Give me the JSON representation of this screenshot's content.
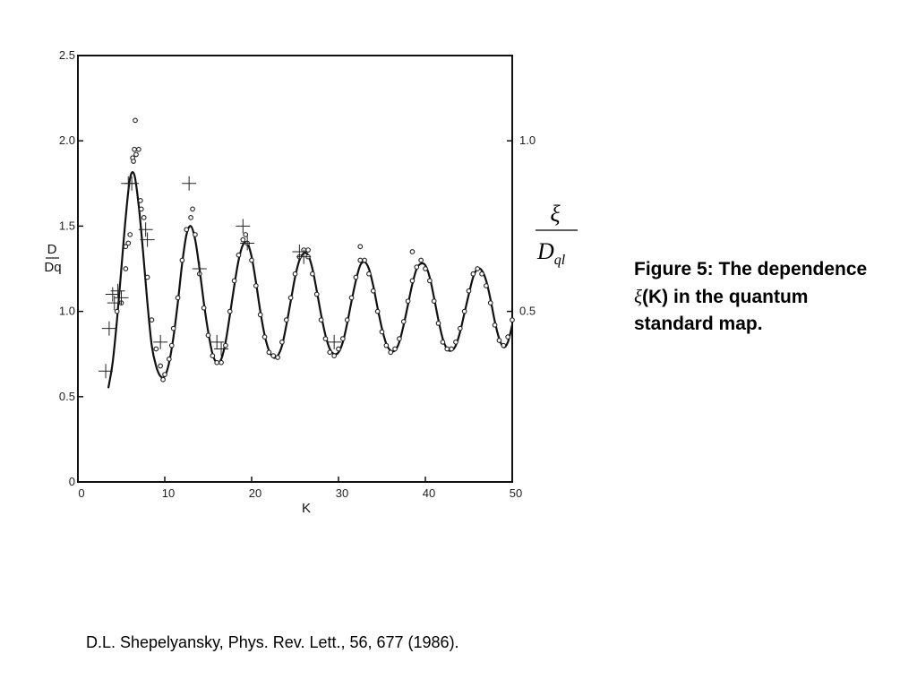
{
  "chart_data": {
    "type": "scatter",
    "xlabel": "K",
    "ylabel_left": {
      "num": "D",
      "den": "Dq"
    },
    "ylabel_right": {
      "num": "ξ",
      "den": "D",
      "den_sub": "ql"
    },
    "xlim": [
      0,
      50
    ],
    "ylim": [
      0,
      2.5
    ],
    "x_ticks": [
      "0",
      "10",
      "20",
      "30",
      "40",
      "50"
    ],
    "y_ticks": [
      "0",
      "0.5",
      "1.0",
      "1.5",
      "2.0",
      "2.5"
    ],
    "y_ticks_right": [
      "0.5",
      "1.0"
    ],
    "right_axis_values": [
      0.5,
      1.0
    ],
    "grid": false,
    "series": [
      {
        "kind": "line",
        "x": [
          3.5,
          4,
          4.5,
          5,
          5.5,
          6,
          6.5,
          7,
          7.5,
          8,
          8.5,
          9,
          9.5,
          10,
          10.5,
          11,
          11.5,
          12,
          12.5,
          13,
          13.5,
          14,
          14.5,
          15,
          15.5,
          16,
          16.5,
          17,
          17.5,
          18,
          18.5,
          19,
          19.5,
          20,
          20.5,
          21,
          21.5,
          22,
          22.5,
          23,
          23.5,
          24,
          24.5,
          25,
          25.5,
          26,
          26.5,
          27,
          27.5,
          28,
          28.5,
          29,
          29.5,
          30,
          30.5,
          31,
          31.5,
          32,
          32.5,
          33,
          33.5,
          34,
          34.5,
          35,
          35.5,
          36,
          36.5,
          37,
          37.5,
          38,
          38.5,
          39,
          39.5,
          40,
          40.5,
          41,
          41.5,
          42,
          42.5,
          43,
          43.5,
          44,
          44.5,
          45,
          45.5,
          46,
          46.5,
          47,
          47.5,
          48,
          48.5,
          49,
          49.5,
          50
        ],
        "y": [
          0.55,
          0.7,
          0.95,
          1.25,
          1.55,
          1.78,
          1.8,
          1.62,
          1.35,
          1.05,
          0.8,
          0.68,
          0.62,
          0.62,
          0.7,
          0.85,
          1.05,
          1.28,
          1.45,
          1.5,
          1.42,
          1.25,
          1.05,
          0.88,
          0.75,
          0.7,
          0.72,
          0.82,
          0.98,
          1.15,
          1.3,
          1.39,
          1.4,
          1.32,
          1.17,
          1.0,
          0.86,
          0.77,
          0.73,
          0.74,
          0.8,
          0.92,
          1.06,
          1.2,
          1.3,
          1.34,
          1.33,
          1.25,
          1.12,
          0.98,
          0.86,
          0.78,
          0.75,
          0.76,
          0.82,
          0.93,
          1.06,
          1.18,
          1.27,
          1.29,
          1.25,
          1.15,
          1.02,
          0.9,
          0.81,
          0.77,
          0.77,
          0.82,
          0.92,
          1.04,
          1.16,
          1.25,
          1.28,
          1.27,
          1.2,
          1.08,
          0.95,
          0.84,
          0.78,
          0.77,
          0.8,
          0.88,
          0.99,
          1.1,
          1.2,
          1.25,
          1.24,
          1.18,
          1.07,
          0.94,
          0.84,
          0.79,
          0.82,
          0.92
        ]
      },
      {
        "kind": "points",
        "x": [
          4.5,
          5,
          5.5,
          6,
          6.3,
          6.6,
          7,
          7.3,
          7.6,
          8,
          8.5,
          9,
          9.5,
          10,
          10.5,
          11,
          11.5,
          12,
          12.5,
          13,
          13.5,
          14,
          14.5,
          15,
          15.5,
          16,
          16.5,
          17,
          17.5,
          18,
          18.5,
          19,
          19.5,
          20,
          20.5,
          21,
          21.5,
          22,
          22.5,
          23,
          23.5,
          24,
          24.5,
          25,
          25.5,
          26,
          26.5,
          27,
          27.5,
          28,
          28.5,
          29,
          29.5,
          30,
          30.5,
          31,
          31.5,
          32,
          32.5,
          33,
          33.5,
          34,
          34.5,
          35,
          35.5,
          36,
          36.5,
          37,
          37.5,
          38,
          38.5,
          39,
          39.5,
          40,
          40.5,
          41,
          41.5,
          42,
          42.5,
          43,
          43.5,
          44,
          44.5,
          45,
          45.5,
          46,
          46.5,
          47,
          47.5,
          48,
          48.5,
          49,
          49.5,
          50,
          6.5,
          6.7,
          6.4,
          7.2,
          5.8,
          5.5,
          13.2,
          32.5,
          38.5,
          26.5,
          19.3,
          9.8,
          10.8
        ],
        "y": [
          1.0,
          1.05,
          1.25,
          1.45,
          1.9,
          2.12,
          1.95,
          1.6,
          1.55,
          1.2,
          0.95,
          0.78,
          0.68,
          0.63,
          0.72,
          0.9,
          1.08,
          1.3,
          1.48,
          1.55,
          1.45,
          1.22,
          1.02,
          0.86,
          0.74,
          0.7,
          0.7,
          0.8,
          1.0,
          1.18,
          1.33,
          1.42,
          1.4,
          1.3,
          1.15,
          0.98,
          0.85,
          0.76,
          0.74,
          0.73,
          0.82,
          0.95,
          1.08,
          1.22,
          1.32,
          1.36,
          1.32,
          1.22,
          1.1,
          0.95,
          0.84,
          0.76,
          0.74,
          0.78,
          0.84,
          0.95,
          1.08,
          1.2,
          1.3,
          1.3,
          1.22,
          1.12,
          1.0,
          0.88,
          0.8,
          0.76,
          0.78,
          0.84,
          0.94,
          1.06,
          1.18,
          1.26,
          1.3,
          1.25,
          1.18,
          1.06,
          0.93,
          0.82,
          0.78,
          0.78,
          0.82,
          0.9,
          1.0,
          1.12,
          1.22,
          1.25,
          1.22,
          1.15,
          1.05,
          0.92,
          0.83,
          0.8,
          0.85,
          0.95,
          1.95,
          1.92,
          1.88,
          1.65,
          1.4,
          1.38,
          1.6,
          1.38,
          1.35,
          1.36,
          1.45,
          0.6,
          0.8
        ]
      },
      {
        "kind": "plus",
        "x": [
          3.2,
          3.6,
          4.0,
          4.2,
          4.6,
          5.0,
          5.8,
          6.2,
          7.8,
          8,
          9.5,
          12.8,
          14,
          16,
          16.5,
          19,
          19.5,
          25.5,
          26,
          29.5
        ],
        "y": [
          0.65,
          0.9,
          1.1,
          1.05,
          1.12,
          1.08,
          1.75,
          1.75,
          1.48,
          1.42,
          0.82,
          1.75,
          1.25,
          0.82,
          0.78,
          1.5,
          1.4,
          1.35,
          1.32,
          0.82
        ]
      }
    ]
  },
  "caption": {
    "part1": "Figure 5: The dependence ",
    "xi": "ξ",
    "part2": "(K) in the quantum standard map."
  },
  "citation": "D.L. Shepelyansky, Phys. Rev. Lett., 56, 677 (1986)."
}
